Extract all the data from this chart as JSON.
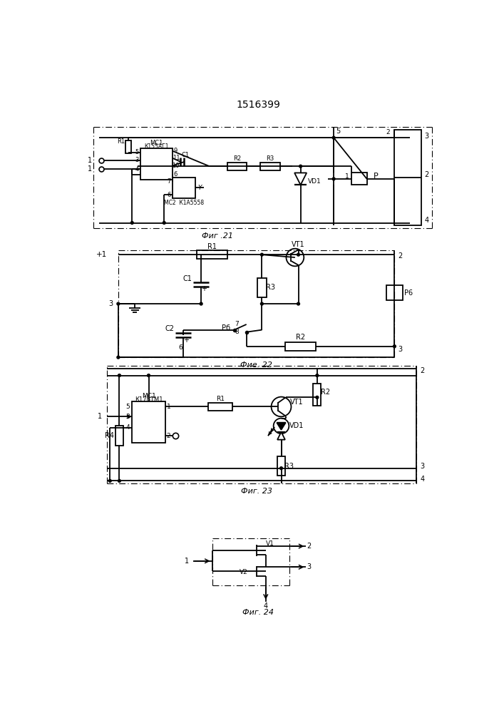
{
  "title": "1516399",
  "fig21_label": "Фиг .21",
  "fig22_label": "Фие. 22",
  "fig23_label": "Фиг. 23",
  "fig24_label": "Фиг. 24",
  "bg_color": "#ffffff",
  "line_color": "#000000",
  "lw": 1.3,
  "dlw": 0.8
}
